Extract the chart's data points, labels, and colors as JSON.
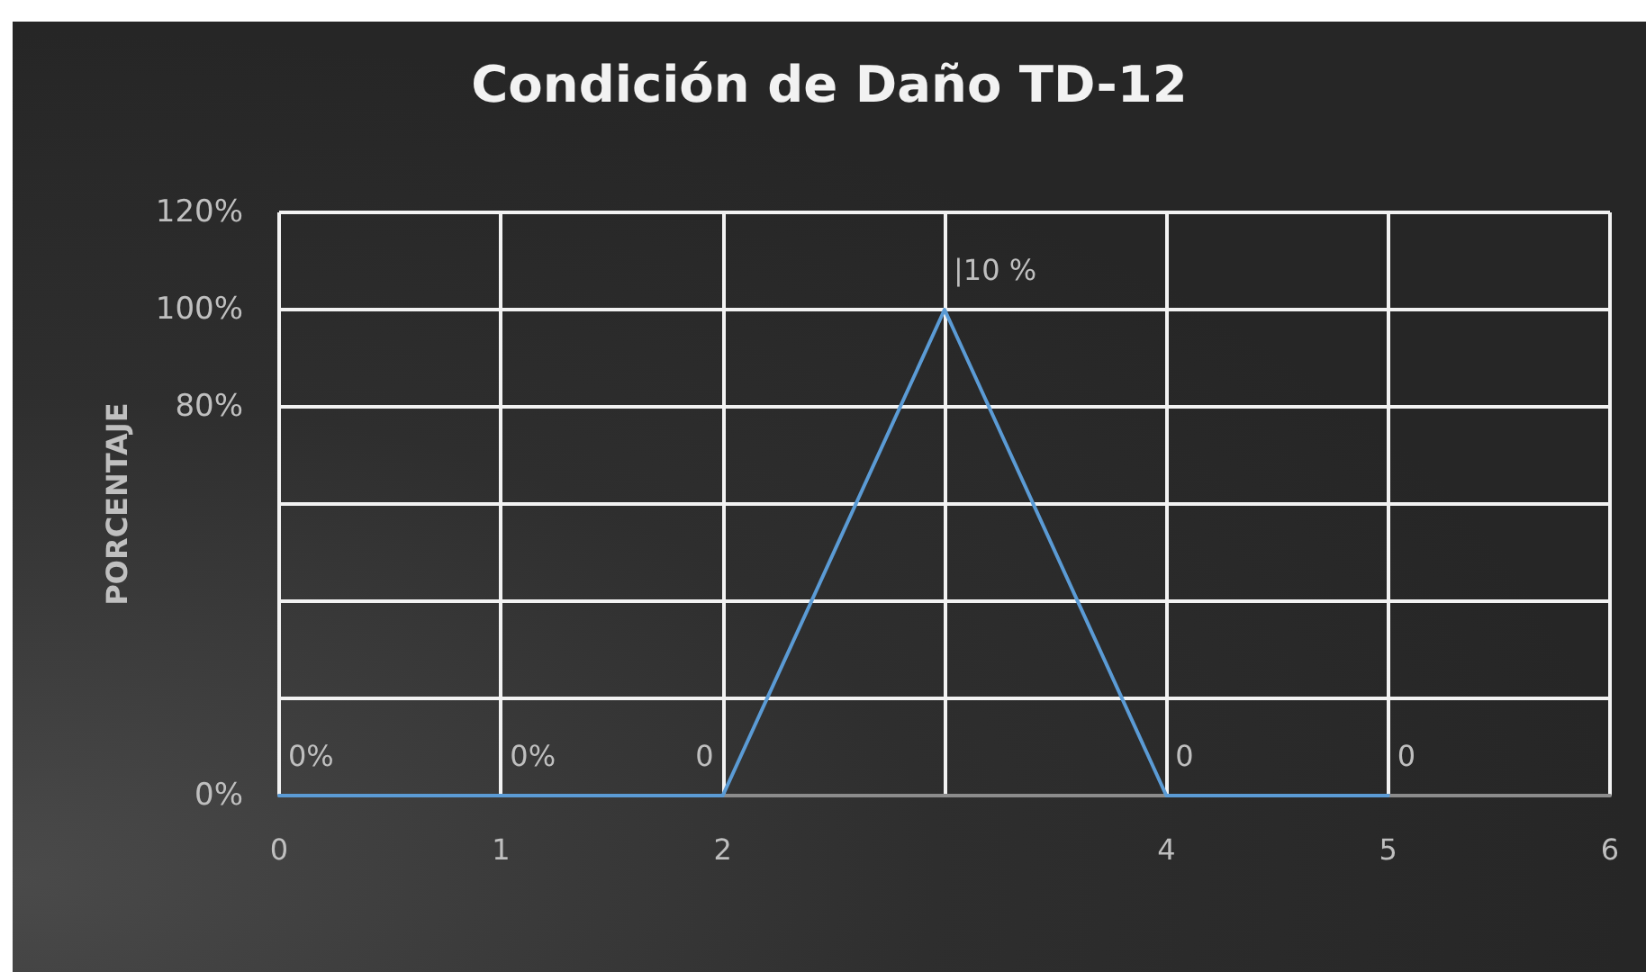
{
  "chart_data": {
    "type": "line",
    "title": "Condición de Daño TD-12",
    "ylabel": "PORCENTAJE",
    "x": [
      0,
      1,
      2,
      3,
      4,
      5
    ],
    "series": [
      {
        "color": "#5b9bd5",
        "values": [
          0,
          0,
          0,
          100,
          0,
          0
        ],
        "value_labels": [
          "0%",
          "0%",
          "0",
          null,
          "0",
          "0"
        ]
      }
    ],
    "annotations": [
      {
        "text": "|10 %",
        "x": 3,
        "y": 100
      }
    ],
    "xlim": [
      0,
      6
    ],
    "xticks": [
      0,
      1,
      2,
      {
        "value": 3,
        "label": null
      },
      4,
      5,
      6
    ],
    "ylim": [
      0,
      120
    ],
    "yticks": [
      {
        "value": 0,
        "label": "0%"
      },
      {
        "value": 20,
        "label": null
      },
      {
        "value": 40,
        "label": null
      },
      {
        "value": 60,
        "label": null
      },
      {
        "value": 80,
        "label": "80%"
      },
      {
        "value": 100,
        "label": "100%"
      },
      {
        "value": 120,
        "label": "120%"
      }
    ],
    "grid": true,
    "marker": "none",
    "line_style": "solid"
  }
}
